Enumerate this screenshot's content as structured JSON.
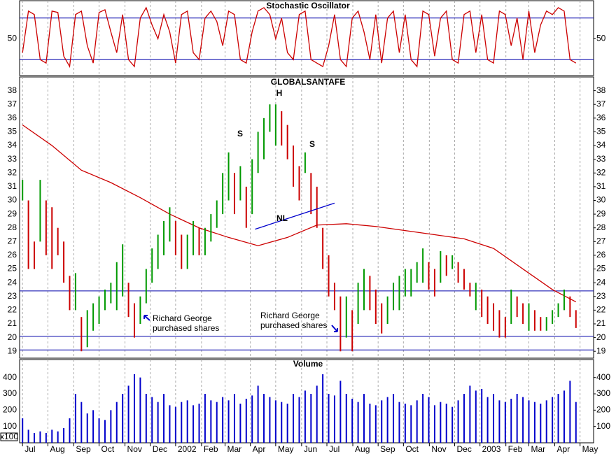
{
  "chart_data": {
    "type": "ohlc",
    "title": "GLOBALSANTAFE",
    "xlim": [
      -0.5,
      97
    ],
    "xticks": [
      {
        "value": 0,
        "label": "Jul"
      },
      {
        "value": 4.3,
        "label": "Aug"
      },
      {
        "value": 8.7,
        "label": "Sep"
      },
      {
        "value": 13,
        "label": "Oct"
      },
      {
        "value": 17.4,
        "label": "Nov"
      },
      {
        "value": 21.7,
        "label": "Dec"
      },
      {
        "value": 26,
        "label": "2002"
      },
      {
        "value": 30.4,
        "label": "Feb"
      },
      {
        "value": 34.4,
        "label": "Mar"
      },
      {
        "value": 38.7,
        "label": "Apr"
      },
      {
        "value": 43,
        "label": "May"
      },
      {
        "value": 47.4,
        "label": "Jun"
      },
      {
        "value": 51.7,
        "label": "Jul"
      },
      {
        "value": 56.1,
        "label": "Aug"
      },
      {
        "value": 60.4,
        "label": "Sep"
      },
      {
        "value": 64.7,
        "label": "Oct"
      },
      {
        "value": 69.1,
        "label": "Nov"
      },
      {
        "value": 73.4,
        "label": "Dec"
      },
      {
        "value": 77.7,
        "label": "2003"
      },
      {
        "value": 82.1,
        "label": "Feb"
      },
      {
        "value": 86,
        "label": "Mar"
      },
      {
        "value": 90.4,
        "label": "Apr"
      },
      {
        "value": 94.7,
        "label": "May"
      }
    ],
    "ylim": [
      18.5,
      39
    ],
    "yticks": [
      19,
      20,
      21,
      22,
      23,
      24,
      25,
      26,
      27,
      28,
      29,
      30,
      31,
      32,
      33,
      34,
      35,
      36,
      37,
      38
    ],
    "high": [
      31.5,
      30,
      27,
      31.5,
      30,
      29.5,
      28,
      27,
      24.5,
      24.7,
      21.5,
      22,
      22.5,
      23,
      23.5,
      24,
      25.5,
      26.8,
      24,
      22.5,
      23,
      25,
      26.5,
      27.5,
      28.5,
      29.5,
      28.5,
      27.5,
      27.5,
      28.5,
      28,
      28,
      29,
      30,
      32,
      33.5,
      32,
      32.5,
      31,
      33,
      35,
      36,
      37,
      37,
      36.5,
      35.5,
      34,
      32.5,
      33.5,
      32,
      31,
      28,
      26,
      24,
      23,
      23,
      22,
      24,
      25,
      24.5,
      23.5,
      22.5,
      23,
      24,
      24.5,
      25,
      25,
      25.5,
      26.5,
      25.5,
      25,
      26.3,
      26,
      26,
      25.5,
      25,
      24,
      24,
      23.5,
      23,
      22.5,
      22,
      21.5,
      23.5,
      23,
      22.5,
      22.5,
      22,
      21.5,
      21.5,
      22,
      22.5,
      23.5,
      23,
      22
    ],
    "low": [
      30,
      25,
      25,
      27,
      26,
      25,
      26,
      24,
      22,
      22,
      19,
      19.3,
      20.5,
      21,
      22,
      22.5,
      22,
      23,
      21.5,
      20,
      21,
      22.5,
      24,
      25,
      26,
      27,
      26,
      25,
      25,
      26,
      26,
      26,
      27,
      28,
      29,
      30,
      29,
      30,
      28,
      29,
      32,
      33,
      35,
      34,
      34,
      33,
      31,
      30,
      32,
      29,
      28,
      25,
      23,
      22,
      19,
      20,
      19,
      21,
      22,
      22,
      21,
      20.3,
      21,
      22,
      22,
      23,
      23,
      24,
      24,
      23.5,
      23,
      24,
      24.5,
      25,
      24,
      23.5,
      23,
      22,
      21.5,
      21,
      20.5,
      20,
      20,
      21,
      21.5,
      21,
      20.5,
      20.5,
      20.5,
      20.5,
      21,
      21.5,
      22,
      21.5,
      20.7
    ],
    "moving_average": {
      "color": "#cc0000",
      "x": [
        0,
        5,
        10,
        15,
        20,
        25,
        30,
        35,
        40,
        45,
        50,
        55,
        60,
        65,
        70,
        75,
        80,
        85,
        90,
        94
      ],
      "values": [
        35.5,
        34,
        32.2,
        31.3,
        30.2,
        29,
        28,
        27.3,
        26.7,
        27.3,
        28.2,
        28.3,
        28.1,
        27.8,
        27.5,
        27.2,
        26.5,
        25,
        23.5,
        22.6
      ]
    },
    "horizontal_lines": [
      23.4,
      20.1,
      19.1
    ],
    "neckline": {
      "x": [
        39.5,
        53
      ],
      "values": [
        27.9,
        29.8
      ]
    },
    "annotations": [
      {
        "text": "S"
      },
      {
        "text": "H"
      },
      {
        "text": "S"
      },
      {
        "text": "NL"
      },
      {
        "text": [
          "Richard George",
          "purchased shares"
        ]
      },
      {
        "text": [
          "Richard George",
          "purchased shares"
        ]
      }
    ],
    "stochastic": {
      "title": "Stochastic Oscillator",
      "color": "#cc0000",
      "ylim": [
        -3,
        105
      ],
      "yticks": [
        50
      ],
      "levels": [
        80,
        20
      ],
      "values": [
        30,
        90,
        85,
        20,
        15,
        90,
        88,
        25,
        10,
        85,
        90,
        40,
        15,
        88,
        92,
        60,
        30,
        85,
        20,
        10,
        80,
        95,
        70,
        50,
        85,
        60,
        15,
        85,
        90,
        30,
        20,
        80,
        90,
        75,
        40,
        90,
        85,
        20,
        15,
        60,
        90,
        95,
        85,
        50,
        80,
        30,
        20,
        85,
        90,
        20,
        15,
        10,
        40,
        85,
        20,
        10,
        80,
        90,
        60,
        20,
        85,
        15,
        80,
        90,
        30,
        85,
        20,
        10,
        90,
        85,
        25,
        80,
        90,
        20,
        15,
        85,
        90,
        30,
        85,
        20,
        15,
        90,
        85,
        40,
        80,
        20,
        90,
        30,
        70,
        90,
        85,
        95,
        90,
        20,
        15
      ]
    },
    "volume": {
      "title": "Volume",
      "unit": "x100",
      "color": "#0000cc",
      "ylim": [
        0,
        510
      ],
      "yticks": [
        100,
        200,
        300,
        400
      ],
      "values": [
        150,
        80,
        60,
        70,
        60,
        80,
        70,
        90,
        150,
        300,
        250,
        180,
        200,
        150,
        140,
        200,
        250,
        300,
        350,
        420,
        400,
        300,
        280,
        250,
        300,
        230,
        220,
        250,
        260,
        230,
        240,
        300,
        260,
        250,
        280,
        260,
        300,
        240,
        270,
        290,
        350,
        300,
        280,
        260,
        250,
        240,
        300,
        280,
        320,
        300,
        350,
        420,
        300,
        290,
        380,
        300,
        270,
        250,
        300,
        240,
        230,
        260,
        280,
        300,
        250,
        240,
        230,
        260,
        300,
        280,
        230,
        250,
        240,
        220,
        260,
        300,
        350,
        320,
        330,
        280,
        300,
        260,
        250,
        270,
        300,
        280,
        260,
        250,
        240,
        260,
        280,
        300,
        320,
        380,
        250
      ]
    }
  }
}
